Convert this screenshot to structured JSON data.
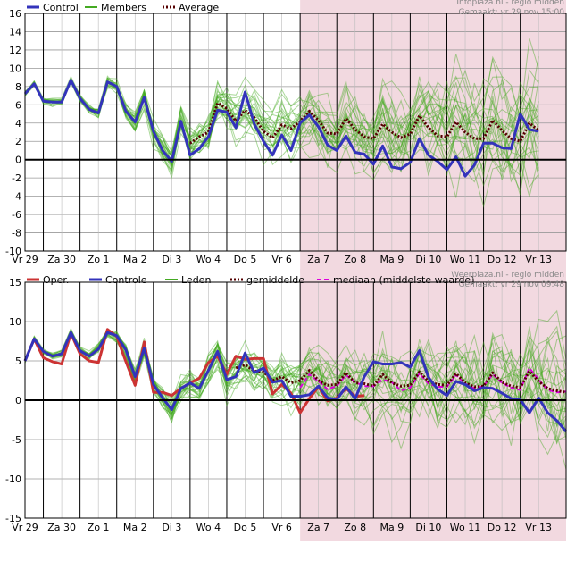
{
  "colors": {
    "control": "#3333bb",
    "member": "#44aa22",
    "average": "#550000",
    "oper": "#cc3333",
    "median": "#dd00dd",
    "shade": "#f2d9e0",
    "grid": "#000000"
  },
  "days": [
    "Vr 29",
    "Za 30",
    "Zo 1",
    "Ma 2",
    "Di 3",
    "Wo 4",
    "Do 5",
    "Vr 6",
    "Za 7",
    "Zo 8",
    "Ma 9",
    "Di 10",
    "Wo 11",
    "Do 12",
    "Vr 13"
  ],
  "chart_data": [
    {
      "type": "line",
      "title": "",
      "credit_line1": "Infoplaza.nl - regio midden",
      "credit_line2": "Gemaakt: vr 29 nov 15:00",
      "xlabel": "",
      "ylabel": "",
      "ylim": [
        -10,
        16
      ],
      "yticks": [
        -10,
        -8,
        -6,
        -4,
        -2,
        0,
        2,
        4,
        6,
        8,
        10,
        12,
        14,
        16
      ],
      "xlim": [
        0,
        14.75
      ],
      "grid": true,
      "shaded_from": 7.5,
      "legend_position": "top-left",
      "legend": [
        {
          "label": "Control",
          "style": "control"
        },
        {
          "label": "Members",
          "style": "member"
        },
        {
          "label": "Average",
          "style": "average"
        }
      ],
      "x": [
        0,
        0.25,
        0.5,
        0.75,
        1,
        1.25,
        1.5,
        1.75,
        2,
        2.25,
        2.5,
        2.75,
        3,
        3.25,
        3.5,
        3.75,
        4,
        4.25,
        4.5,
        4.75,
        5,
        5.25,
        5.5,
        5.75,
        6,
        6.25,
        6.5,
        6.75,
        7,
        7.25,
        7.5,
        7.75,
        8,
        8.25,
        8.5,
        8.75,
        9,
        9.25,
        9.5,
        9.75,
        10,
        10.25,
        10.5,
        10.75,
        11,
        11.25,
        11.5,
        11.75,
        12,
        12.25,
        12.5,
        12.75,
        13,
        13.25,
        13.5,
        13.75,
        14,
        14.25,
        14.5,
        14.75
      ],
      "series": [
        {
          "name": "Control",
          "role": "control",
          "values": [
            7.2,
            8.3,
            6.4,
            6.3,
            6.3,
            8.7,
            6.7,
            5.5,
            5.1,
            8.5,
            8.0,
            5.3,
            4.1,
            6.8,
            3.1,
            1.0,
            -0.2,
            4.2,
            0.5,
            1.2,
            2.5,
            5.4,
            5.2,
            3.5,
            7.4,
            3.9,
            2.0,
            0.5,
            2.7,
            1.0,
            4.0,
            4.9,
            3.6,
            1.6,
            1.0,
            2.6,
            0.8,
            0.6,
            -0.5,
            1.5,
            -0.8,
            -1.0,
            -0.3,
            2.3,
            0.5,
            -0.2,
            -1.1,
            0.3,
            -1.8,
            -0.6,
            1.8,
            1.8,
            1.3,
            1.2,
            5.0,
            3.3,
            3.1,
            null,
            null,
            null
          ]
        },
        {
          "name": "Average",
          "role": "average",
          "values": [
            null,
            null,
            null,
            null,
            null,
            null,
            null,
            null,
            null,
            null,
            null,
            null,
            null,
            null,
            null,
            null,
            null,
            null,
            1.8,
            2.5,
            3.0,
            6.2,
            5.6,
            4.2,
            5.4,
            4.6,
            3.1,
            2.4,
            3.8,
            3.4,
            4.2,
            5.3,
            4.3,
            2.9,
            2.8,
            4.5,
            3.3,
            2.5,
            2.3,
            3.9,
            3.0,
            2.4,
            2.8,
            4.8,
            3.5,
            2.6,
            2.5,
            4.1,
            3.0,
            2.3,
            2.3,
            4.3,
            3.2,
            2.3,
            2.0,
            4.0,
            3.2,
            null,
            null,
            null
          ]
        }
      ]
    },
    {
      "type": "line",
      "title": "",
      "credit_line1": "Weerplaza.nl - regio midden",
      "credit_line2": "Gemaakt: vr 29 nov 09:48",
      "xlabel": "",
      "ylabel": "",
      "ylim": [
        -15,
        15
      ],
      "yticks": [
        -15,
        -10,
        -5,
        0,
        5,
        10,
        15
      ],
      "xlim": [
        0,
        14.75
      ],
      "grid": true,
      "shaded_from": 7.5,
      "legend_position": "top-left",
      "legend": [
        {
          "label": "Oper.",
          "style": "oper"
        },
        {
          "label": "Controle",
          "style": "control"
        },
        {
          "label": "Leden",
          "style": "member"
        },
        {
          "label": "gemiddelde",
          "style": "average"
        },
        {
          "label": "mediaan (middelste waarde)",
          "style": "median"
        }
      ],
      "x": [
        0,
        0.25,
        0.5,
        0.75,
        1,
        1.25,
        1.5,
        1.75,
        2,
        2.25,
        2.5,
        2.75,
        3,
        3.25,
        3.5,
        3.75,
        4,
        4.25,
        4.5,
        4.75,
        5,
        5.25,
        5.5,
        5.75,
        6,
        6.25,
        6.5,
        6.75,
        7,
        7.25,
        7.5,
        7.75,
        8,
        8.25,
        8.5,
        8.75,
        9,
        9.25,
        9.5,
        9.75,
        10,
        10.25,
        10.5,
        10.75,
        11,
        11.25,
        11.5,
        11.75,
        12,
        12.25,
        12.5,
        12.75,
        13,
        13.25,
        13.5,
        13.75,
        14,
        14.25,
        14.5,
        14.75
      ],
      "series": [
        {
          "name": "Oper.",
          "role": "oper",
          "values": [
            5.0,
            7.8,
            5.4,
            4.9,
            4.6,
            8.5,
            5.9,
            5.0,
            4.8,
            9.0,
            8.1,
            4.9,
            1.9,
            7.4,
            1.0,
            1.0,
            0.6,
            1.5,
            2.2,
            2.8,
            4.8,
            5.6,
            3.3,
            5.6,
            5.2,
            5.3,
            5.3,
            0.8,
            2.0,
            0.9,
            -1.6,
            0.2,
            1.7,
            -0.1,
            0.3,
            1.5,
            0.5,
            0.6,
            null,
            null,
            null,
            null,
            null,
            null,
            null,
            null,
            null,
            null,
            null,
            null,
            null,
            null,
            null,
            null,
            null,
            null,
            null,
            null,
            null,
            null
          ]
        },
        {
          "name": "Controle",
          "role": "control",
          "values": [
            5.0,
            7.8,
            6.2,
            5.6,
            5.9,
            8.6,
            6.3,
            5.6,
            6.5,
            8.6,
            8.2,
            6.4,
            3.0,
            6.6,
            2.0,
            0.3,
            -1.2,
            1.5,
            2.2,
            1.5,
            3.8,
            6.2,
            2.6,
            3.0,
            6.0,
            3.5,
            4.1,
            2.3,
            2.5,
            0.5,
            0.5,
            0.7,
            1.8,
            0.3,
            0.1,
            1.7,
            0.2,
            3.0,
            4.9,
            4.6,
            4.6,
            4.8,
            4.2,
            6.3,
            2.9,
            1.4,
            0.6,
            2.4,
            2.0,
            1.2,
            1.6,
            1.5,
            0.9,
            0.2,
            0.1,
            -1.6,
            0.3,
            -1.6,
            -2.6,
            -4.0
          ]
        },
        {
          "name": "gemiddelde",
          "role": "average",
          "values": [
            null,
            null,
            null,
            null,
            null,
            null,
            null,
            null,
            null,
            null,
            null,
            null,
            null,
            null,
            null,
            null,
            null,
            null,
            null,
            null,
            null,
            null,
            null,
            4.1,
            4.5,
            3.7,
            3.6,
            2.5,
            3.0,
            2.2,
            2.5,
            3.8,
            2.5,
            1.9,
            2.0,
            3.5,
            2.2,
            2.1,
            1.8,
            3.3,
            2.2,
            1.8,
            1.9,
            3.6,
            2.4,
            2.0,
            1.9,
            3.4,
            2.2,
            1.7,
            1.8,
            3.5,
            2.3,
            1.8,
            1.6,
            3.7,
            2.4,
            1.5,
            1.2,
            1.0
          ]
        },
        {
          "name": "mediaan (middelste waarde)",
          "role": "median",
          "values": [
            null,
            null,
            null,
            null,
            null,
            null,
            null,
            null,
            null,
            null,
            null,
            null,
            null,
            null,
            null,
            null,
            null,
            null,
            null,
            null,
            null,
            null,
            null,
            null,
            null,
            null,
            null,
            null,
            null,
            null,
            1.6,
            3.3,
            2.4,
            1.4,
            1.8,
            3.2,
            2.3,
            1.8,
            1.8,
            2.6,
            2.3,
            1.2,
            1.6,
            3.4,
            2.1,
            1.7,
            1.7,
            3.2,
            2.1,
            1.5,
            1.8,
            3.3,
            2.2,
            1.6,
            1.3,
            4.1,
            2.6,
            1.3,
            1.0,
            1.1
          ]
        }
      ]
    }
  ]
}
